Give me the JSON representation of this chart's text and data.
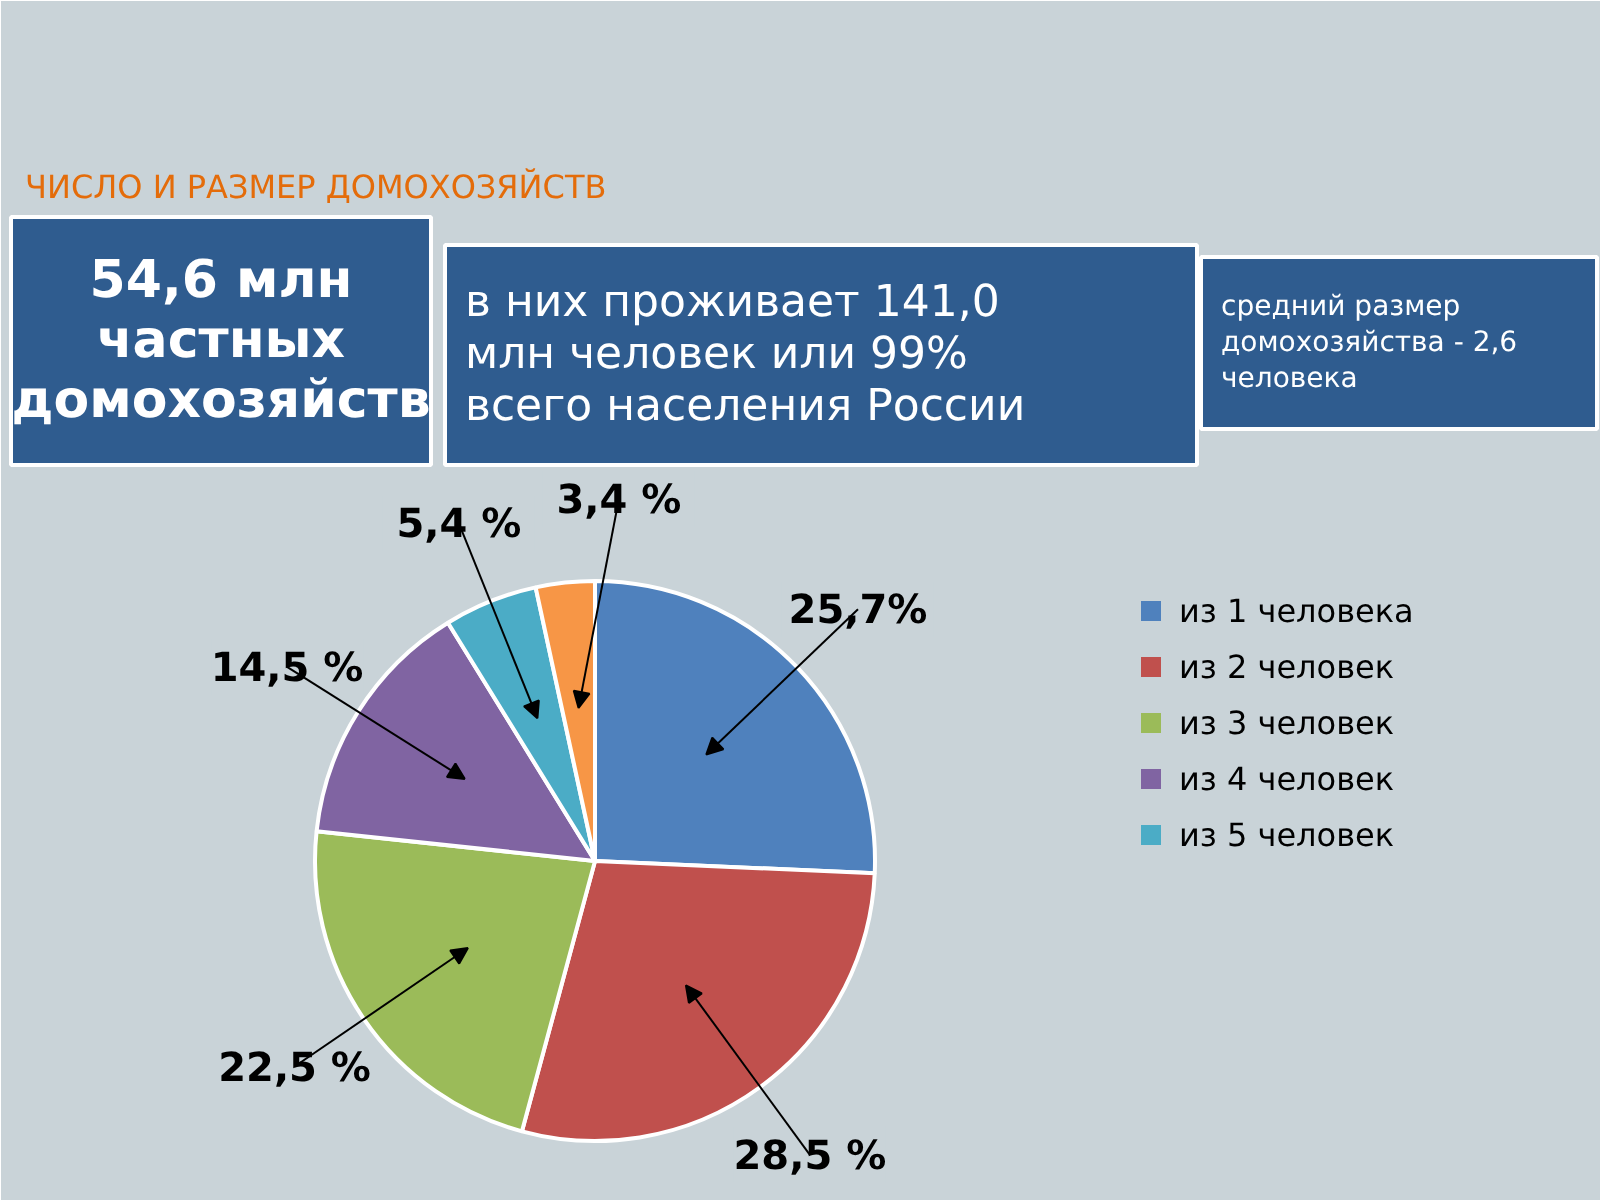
{
  "chart_data": {
    "type": "pie",
    "title": "ЧИСЛО И РАЗМЕР ДОМОХОЗЯЙСТВ",
    "categories": [
      "из 1 человека",
      "из 2 человек",
      "из 3 человек",
      "из 4 человек",
      "из 5 человек",
      null
    ],
    "values": [
      25.7,
      28.5,
      22.5,
      14.5,
      5.4,
      3.4
    ],
    "colors": [
      "#4f81bd",
      "#c0504d",
      "#9bbb59",
      "#8064a2",
      "#4bacc6",
      "#f79646"
    ],
    "value_labels": [
      "25,7%",
      "28,5 %",
      "22,5 %",
      "14,5 %",
      "5,4 %",
      "3,4 %"
    ],
    "legend": "right",
    "annotations": [
      "54,6 млн частных домохозяйств",
      "в них проживает 141,0 млн человек или 99% всего населения России",
      "средний размер домохозяйства - 2,6 человека"
    ]
  }
}
